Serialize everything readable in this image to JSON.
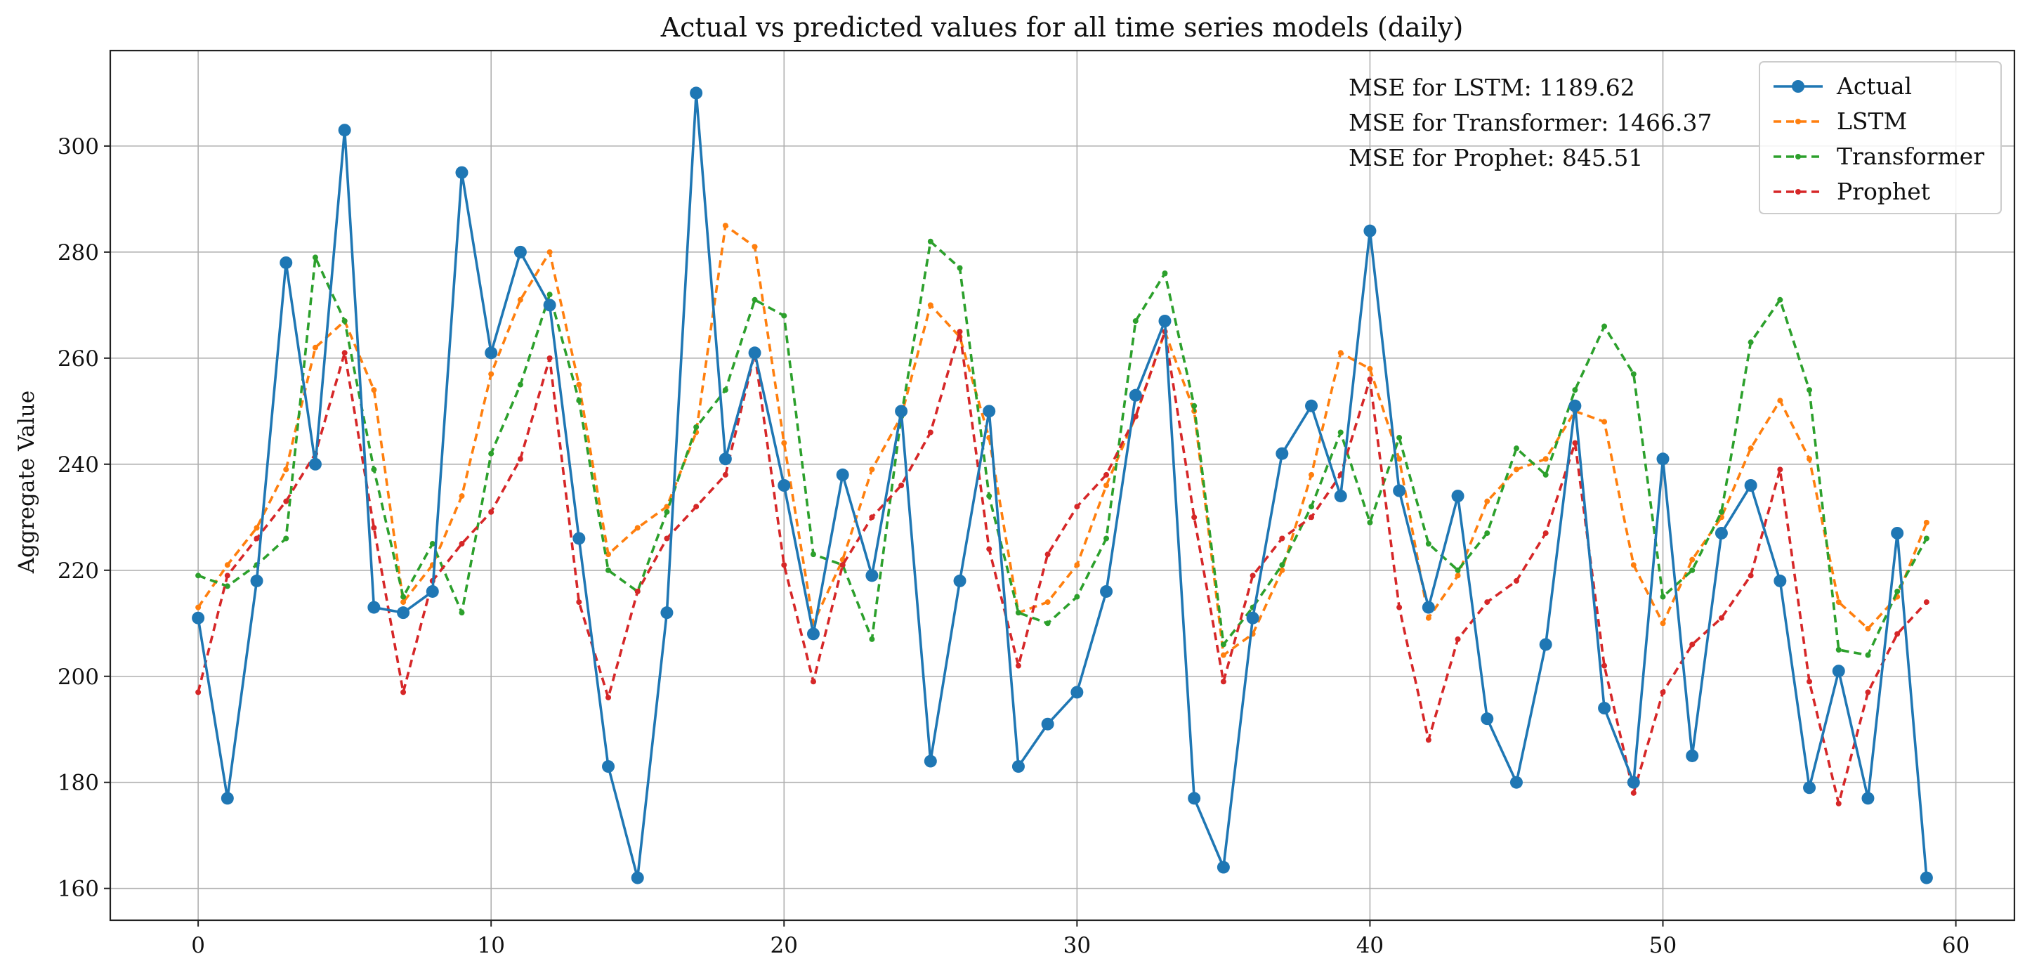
{
  "chart_data": {
    "type": "line",
    "title": "Actual vs predicted values for all time series models (daily)",
    "xlabel": "",
    "ylabel": "Aggregate Value",
    "xlim": [
      -3,
      62
    ],
    "ylim": [
      154,
      318
    ],
    "xticks": [
      0,
      10,
      20,
      30,
      40,
      50,
      60
    ],
    "yticks": [
      160,
      180,
      200,
      220,
      240,
      260,
      280,
      300
    ],
    "grid": true,
    "legend_position": "top-right",
    "x": [
      0,
      1,
      2,
      3,
      4,
      5,
      6,
      7,
      8,
      9,
      10,
      11,
      12,
      13,
      14,
      15,
      16,
      17,
      18,
      19,
      20,
      21,
      22,
      23,
      24,
      25,
      26,
      27,
      28,
      29,
      30,
      31,
      32,
      33,
      34,
      35,
      36,
      37,
      38,
      39,
      40,
      41,
      42,
      43,
      44,
      45,
      46,
      47,
      48,
      49,
      50,
      51,
      52,
      53,
      54,
      55,
      56,
      57,
      58,
      59
    ],
    "series": [
      {
        "name": "Actual",
        "color": "#1f77b4",
        "style": "solid-marker",
        "values": [
          211,
          177,
          218,
          278,
          240,
          303,
          213,
          212,
          216,
          295,
          261,
          280,
          270,
          226,
          183,
          162,
          212,
          310,
          241,
          261,
          236,
          208,
          238,
          219,
          250,
          184,
          218,
          250,
          183,
          191,
          197,
          216,
          253,
          267,
          177,
          164,
          211,
          242,
          251,
          234,
          284,
          235,
          213,
          234,
          192,
          180,
          206,
          251,
          194,
          180,
          241,
          185,
          227,
          236,
          218,
          179,
          201,
          177,
          227,
          162
        ]
      },
      {
        "name": "LSTM",
        "color": "#ff7f0e",
        "style": "dashed",
        "values": [
          213,
          221,
          228,
          239,
          262,
          267,
          254,
          214,
          221,
          234,
          257,
          271,
          280,
          255,
          223,
          228,
          232,
          246,
          285,
          281,
          244,
          210,
          222,
          239,
          249,
          270,
          264,
          245,
          212,
          214,
          221,
          236,
          249,
          265,
          250,
          204,
          208,
          220,
          238,
          261,
          258,
          241,
          211,
          219,
          233,
          239,
          241,
          250,
          248,
          221,
          210,
          222,
          230,
          243,
          252,
          241,
          214,
          209,
          215,
          229
        ]
      },
      {
        "name": "Transformer",
        "color": "#2ca02c",
        "style": "dashed",
        "values": [
          219,
          217,
          221,
          226,
          279,
          267,
          239,
          215,
          225,
          212,
          242,
          255,
          272,
          252,
          220,
          216,
          231,
          247,
          254,
          271,
          268,
          223,
          221,
          207,
          249,
          282,
          277,
          234,
          212,
          210,
          215,
          226,
          267,
          276,
          251,
          206,
          213,
          221,
          232,
          246,
          229,
          245,
          225,
          220,
          227,
          243,
          238,
          254,
          266,
          257,
          215,
          220,
          231,
          263,
          271,
          254,
          205,
          204,
          216,
          226
        ]
      },
      {
        "name": "Prophet",
        "color": "#d62728",
        "style": "dashed",
        "values": [
          197,
          219,
          226,
          233,
          242,
          261,
          228,
          197,
          218,
          225,
          231,
          241,
          260,
          214,
          196,
          216,
          226,
          232,
          238,
          261,
          221,
          199,
          221,
          230,
          236,
          246,
          265,
          224,
          202,
          223,
          232,
          238,
          249,
          265,
          230,
          199,
          219,
          226,
          230,
          238,
          256,
          213,
          188,
          207,
          214,
          218,
          227,
          244,
          202,
          178,
          197,
          206,
          211,
          219,
          239,
          199,
          176,
          197,
          208,
          214
        ]
      }
    ],
    "annotations": [
      "MSE for LSTM: 1189.62",
      "MSE for Transformer: 1466.37",
      "MSE for Prophet: 845.51"
    ]
  }
}
